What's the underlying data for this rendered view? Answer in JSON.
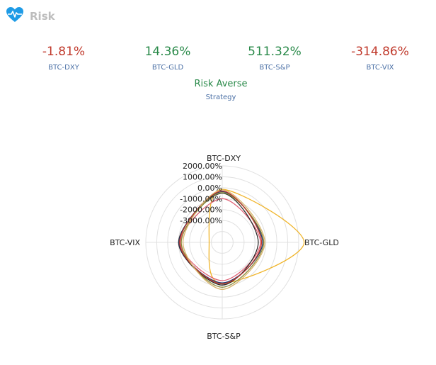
{
  "header": {
    "title": "Risk",
    "icon": "heartbeat-icon",
    "icon_color": "#1e9be6"
  },
  "metrics": [
    {
      "value": "-1.81%",
      "label": "BTC-DXY",
      "color": "#c0392b"
    },
    {
      "value": "14.36%",
      "label": "BTC-GLD",
      "color": "#2a8a4a"
    },
    {
      "value": "511.32%",
      "label": "BTC-S&P",
      "color": "#2a8a4a"
    },
    {
      "value": "-314.86%",
      "label": "BTC-VIX",
      "color": "#c0392b"
    }
  ],
  "strategy": {
    "value": "Risk Averse",
    "label": "Strategy"
  },
  "chart_data": {
    "type": "radar",
    "axes": [
      "BTC-DXY",
      "BTC-GLD",
      "BTC-S&P",
      "BTC-VIX"
    ],
    "radial_range": [
      -5000,
      2000
    ],
    "tick_labels": [
      "2000.00%",
      "1000.00%",
      "0.00%",
      "-1000.00%",
      "-2000.00%",
      "-3000.00%"
    ],
    "grid": true,
    "series": [
      {
        "color": "#f0b429",
        "values": [
          -150,
          2500,
          -1250,
          -3800
        ]
      },
      {
        "color": "#e06377",
        "values": [
          -1000,
          -1500,
          -1500,
          -1150
        ]
      },
      {
        "color": "#2b2b2b",
        "values": [
          -500,
          -1700,
          -1100,
          -1000
        ]
      },
      {
        "color": "#1f3b73",
        "values": [
          -350,
          -1300,
          -1300,
          -1050
        ]
      },
      {
        "color": "#8a8a3a",
        "values": [
          -450,
          -1200,
          -900,
          -1250
        ]
      },
      {
        "color": "#c0392b",
        "values": [
          -300,
          -1400,
          -1200,
          -1100
        ]
      },
      {
        "color": "#d9b36c",
        "values": [
          -200,
          -1100,
          -700,
          -1400
        ]
      }
    ]
  }
}
